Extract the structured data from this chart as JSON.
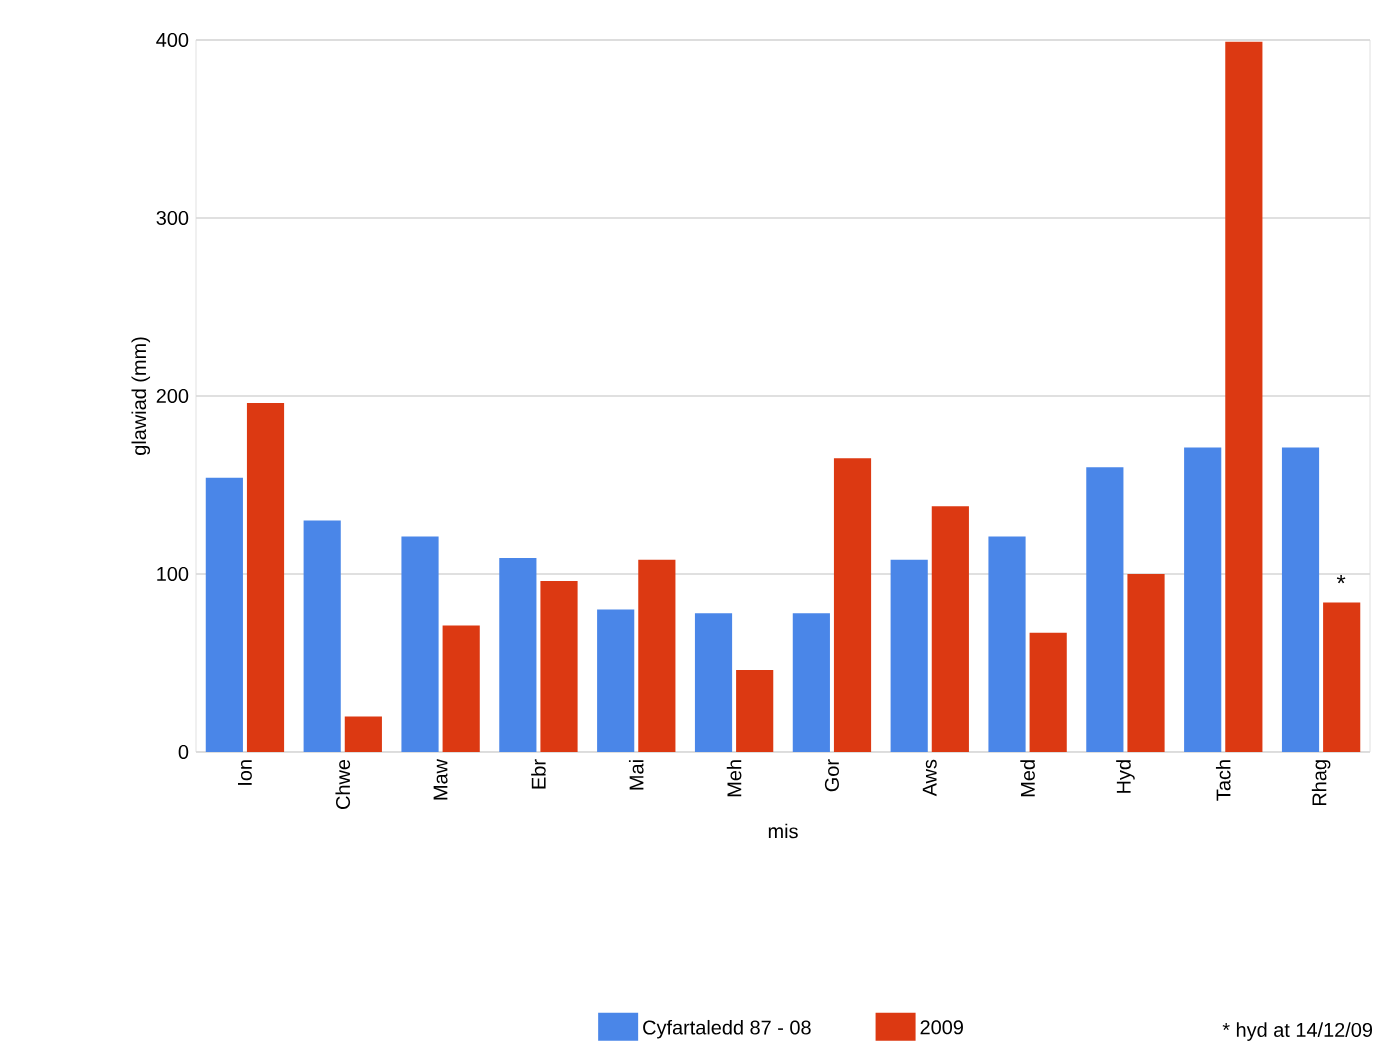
{
  "chart_data": {
    "type": "bar",
    "xlabel": "mis",
    "ylabel": "glawiad (mm)",
    "categories": [
      "Ion",
      "Chwe",
      "Maw",
      "Ebr",
      "Mai",
      "Meh",
      "Gor",
      "Aws",
      "Med",
      "Hyd",
      "Tach",
      "Rhag"
    ],
    "series": [
      {
        "name": "Cyfartaledd 87 - 08",
        "color": "#4a86e8",
        "values": [
          154,
          130,
          121,
          109,
          80,
          78,
          78,
          108,
          121,
          160,
          171,
          171
        ]
      },
      {
        "name": "2009",
        "color": "#dc3912",
        "values": [
          196,
          20,
          71,
          96,
          108,
          46,
          165,
          138,
          67,
          100,
          399,
          84
        ]
      }
    ],
    "ylim": [
      0,
      400
    ],
    "yticks": [
      0,
      100,
      200,
      300,
      400
    ],
    "grid": "y",
    "legend": "bottom",
    "annotations": [
      {
        "text": "*",
        "x": "Rhag",
        "y": 84
      },
      "* hyd at 14/12/09"
    ]
  }
}
